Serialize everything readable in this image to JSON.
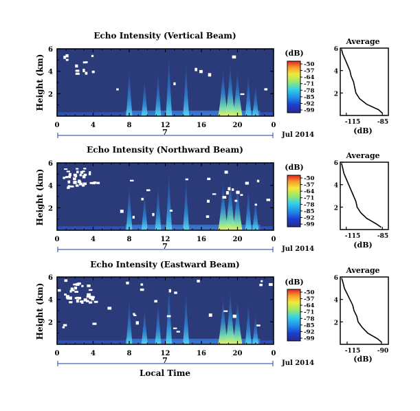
{
  "figure": {
    "xlabel": "Local Time",
    "date_label": "Jul 2014",
    "day_label": "7"
  },
  "panels": [
    {
      "title": "Echo Intensity (Vertical Beam)",
      "ylabel": "Height (km)",
      "cb_unit": "(dB)",
      "avg_title": "Average",
      "avg_xlabel": "(dB)",
      "avg_xticks": [
        "-115",
        "-85"
      ]
    },
    {
      "title": "Echo Intensity (Northward Beam)",
      "ylabel": "Height (km)",
      "cb_unit": "(dB)",
      "avg_title": "Average",
      "avg_xlabel": "(dB)",
      "avg_xticks": [
        "-115",
        "-85"
      ]
    },
    {
      "title": "Echo Intensity (Eastward Beam)",
      "ylabel": "Height (km)",
      "cb_unit": "(dB)",
      "avg_title": "Average",
      "avg_xlabel": "(dB)",
      "avg_xticks": [
        "-115",
        "-90"
      ]
    }
  ],
  "chart_data": [
    {
      "type": "heatmap",
      "title": "Echo Intensity (Vertical Beam)",
      "xlabel": "Local Time",
      "ylabel": "Height (km)",
      "xlim": [
        0,
        24
      ],
      "ylim": [
        0,
        6
      ],
      "x_ticks": [
        "0",
        "4",
        "8",
        "12",
        "16",
        "20",
        "0"
      ],
      "y_ticks": [
        "2",
        "4",
        "6"
      ],
      "colorbar": {
        "unit": "(dB)",
        "ticks": [
          "-50",
          "-57",
          "-64",
          "-71",
          "-78",
          "-85",
          "-92",
          "-99"
        ],
        "range": [
          -99,
          -50
        ]
      },
      "cell_peaks_hours": [
        8,
        9.7,
        11.2,
        12.4,
        14.3,
        18.4,
        19.2,
        20,
        21.2,
        22
      ],
      "cell_peaks_height_km": [
        4.5,
        3.5,
        4.2,
        5.7,
        5.0,
        4.5,
        5.0,
        4.3,
        4.0,
        3.0
      ],
      "average_profile": {
        "title": "Average",
        "xlabel": "(dB)",
        "x_ticks": [
          "-115",
          "-85"
        ],
        "xlim": [
          -120,
          -80
        ],
        "height_km": [
          0.2,
          0.5,
          1.0,
          1.5,
          2.0,
          2.5,
          3.0,
          3.5,
          4.0,
          4.5,
          5.0,
          5.5,
          5.9
        ],
        "db": [
          -85,
          -88,
          -98,
          -104,
          -107,
          -108,
          -109,
          -111,
          -112,
          -114,
          -116,
          -118,
          -119
        ]
      }
    },
    {
      "type": "heatmap",
      "title": "Echo Intensity (Northward Beam)",
      "xlabel": "Local Time",
      "ylabel": "Height (km)",
      "xlim": [
        0,
        24
      ],
      "ylim": [
        0,
        6
      ],
      "x_ticks": [
        "0",
        "4",
        "8",
        "12",
        "16",
        "20",
        "0"
      ],
      "y_ticks": [
        "2",
        "4",
        "6"
      ],
      "colorbar": {
        "unit": "(dB)",
        "ticks": [
          "-50",
          "-57",
          "-64",
          "-71",
          "-78",
          "-85",
          "-92",
          "-99"
        ],
        "range": [
          -99,
          -50
        ]
      },
      "cell_peaks_hours": [
        8,
        9.7,
        11.2,
        12.4,
        14.3,
        18.4,
        19.2,
        20,
        21.2,
        22
      ],
      "cell_peaks_height_km": [
        4.3,
        3.5,
        4.2,
        5.5,
        4.8,
        4.6,
        5.0,
        4.3,
        4.0,
        3.0
      ],
      "average_profile": {
        "title": "Average",
        "xlabel": "(dB)",
        "x_ticks": [
          "-115",
          "-85"
        ],
        "xlim": [
          -120,
          -80
        ],
        "height_km": [
          0.2,
          0.5,
          1.0,
          1.5,
          2.0,
          2.5,
          3.0,
          3.5,
          4.0,
          4.5,
          5.0,
          5.5,
          5.9
        ],
        "db": [
          -86,
          -90,
          -98,
          -103,
          -106,
          -107,
          -109,
          -111,
          -113,
          -115,
          -117,
          -118,
          -119
        ]
      }
    },
    {
      "type": "heatmap",
      "title": "Echo Intensity (Eastward Beam)",
      "xlabel": "Local Time",
      "ylabel": "Height (km)",
      "xlim": [
        0,
        24
      ],
      "ylim": [
        0,
        6
      ],
      "x_ticks": [
        "0",
        "4",
        "8",
        "12",
        "16",
        "20",
        "0"
      ],
      "y_ticks": [
        "2",
        "4",
        "6"
      ],
      "colorbar": {
        "unit": "(dB)",
        "ticks": [
          "-50",
          "-57",
          "-64",
          "-71",
          "-78",
          "-85",
          "-92",
          "-99"
        ],
        "range": [
          -99,
          -50
        ]
      },
      "cell_peaks_hours": [
        8,
        9.7,
        11.2,
        12.4,
        14.3,
        18.4,
        19.2,
        20,
        21.2,
        22
      ],
      "cell_peaks_height_km": [
        4.2,
        3.4,
        4.0,
        5.6,
        4.9,
        4.4,
        5.0,
        4.2,
        3.9,
        2.8
      ],
      "average_profile": {
        "title": "Average",
        "xlabel": "(dB)",
        "x_ticks": [
          "-115",
          "-90"
        ],
        "xlim": [
          -120,
          -85
        ],
        "height_km": [
          0.2,
          0.5,
          1.0,
          1.5,
          2.0,
          2.5,
          3.0,
          3.5,
          4.0,
          4.5,
          5.0,
          5.5,
          5.9
        ],
        "db": [
          -90,
          -93,
          -100,
          -104,
          -107,
          -108,
          -110,
          -111,
          -113,
          -115,
          -117,
          -118,
          -119
        ]
      }
    }
  ],
  "colors": {
    "background_echo": "#2b3a78",
    "axis": "#000000",
    "timebar": "#1f3fae"
  }
}
